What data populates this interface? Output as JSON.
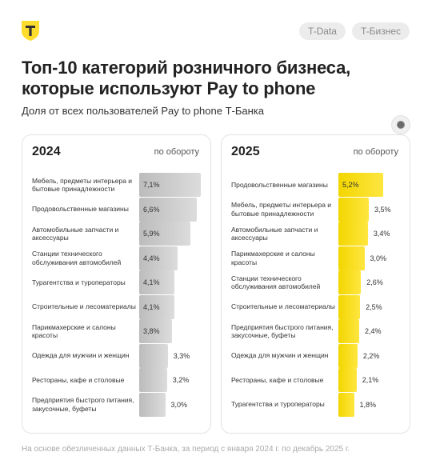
{
  "header": {
    "logo_icon": "t-bank-shield-logo",
    "tags": [
      "T-Data",
      "T-Бизнес"
    ]
  },
  "title": "Топ-10 категорий розничного бизнеса, которые используют Pay to phone",
  "subtitle": "Доля от всех пользователей Pay to phone Т-Банка",
  "footnote": "На основе обезличенных данных Т-Банка, за период с января 2024 г. по декабрь 2025 г.",
  "colors": {
    "bar_2024": "#c8c8c8",
    "bar_2025": "#f7dc14"
  },
  "chart_data": [
    {
      "type": "bar",
      "orientation": "horizontal",
      "title": "2024",
      "metric_label": "по обороту",
      "categories": [
        "Мебель, предметы интерьера и бытовые принадлежности",
        "Продовольственные магазины",
        "Автомобильные запчасти и аксессуары",
        "Станции технического обслуживания автомобилей",
        "Турагентства и туроператоры",
        "Строительные и лесоматериалы",
        "Парикмахерские и салоны красоты",
        "Одежда для мужчин и женщин",
        "Рестораны, кафе и столовые",
        "Предприятия быстрого питания, закусочные, буфеты"
      ],
      "values": [
        7.1,
        6.6,
        5.9,
        4.4,
        4.1,
        4.1,
        3.8,
        3.3,
        3.2,
        3.0
      ],
      "value_labels": [
        "7,1%",
        "6,6%",
        "5,9%",
        "4,4%",
        "4,1%",
        "4,1%",
        "3,8%",
        "3,3%",
        "3,2%",
        "3,0%"
      ],
      "unit": "%"
    },
    {
      "type": "bar",
      "orientation": "horizontal",
      "title": "2025",
      "metric_label": "по обороту",
      "categories": [
        "Продовольственные магазины",
        "Мебель, предметы интерьера и бытовые принадлежности",
        "Автомобильные запчасти и аксессуары",
        "Парикмахерские и салоны красоты",
        "Станции технического обслуживания автомобилей",
        "Строительные и лесоматериалы",
        "Предприятия быстрого питания, закусочные, буфеты",
        "Одежда для мужчин и женщин",
        "Рестораны, кафе и столовые",
        "Турагентства и туроператоры"
      ],
      "values": [
        5.2,
        3.5,
        3.4,
        3.0,
        2.6,
        2.5,
        2.4,
        2.2,
        2.1,
        1.8
      ],
      "value_labels": [
        "5,2%",
        "3,5%",
        "3,4%",
        "3,0%",
        "2,6%",
        "2,5%",
        "2,4%",
        "2,2%",
        "2,1%",
        "1,8%"
      ],
      "unit": "%"
    }
  ]
}
